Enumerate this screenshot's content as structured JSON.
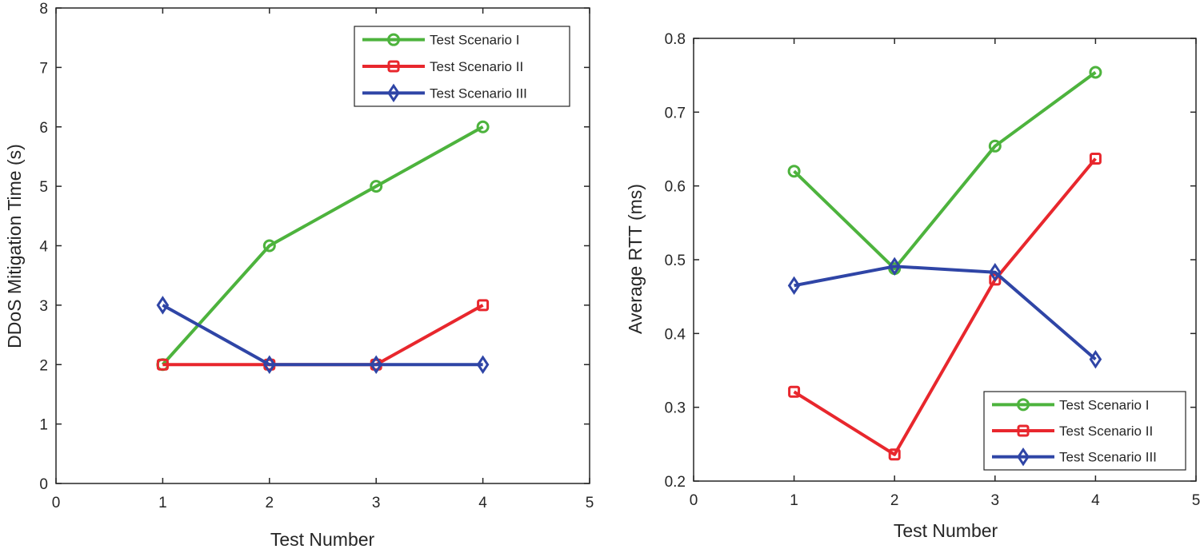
{
  "chart_data": [
    {
      "type": "line",
      "title": "",
      "xlabel": "Test Number",
      "ylabel": "DDoS Mitigation Time (s)",
      "xlim": [
        0,
        5
      ],
      "ylim": [
        0,
        8
      ],
      "xticks": [
        0,
        1,
        2,
        3,
        4,
        5
      ],
      "yticks": [
        0,
        1,
        2,
        3,
        4,
        5,
        6,
        7,
        8
      ],
      "grid": false,
      "legend_location": "top-right",
      "x": [
        1,
        2,
        3,
        4
      ],
      "series": [
        {
          "name": "Test Scenario I",
          "values": [
            2,
            4,
            5,
            6
          ],
          "color": "#4db33d",
          "marker": "circle"
        },
        {
          "name": "Test Scenario II",
          "values": [
            2,
            2,
            2,
            3
          ],
          "color": "#e8272d",
          "marker": "square"
        },
        {
          "name": "Test Scenario III",
          "values": [
            3,
            2,
            2,
            2
          ],
          "color": "#2f45a6",
          "marker": "diamond"
        }
      ]
    },
    {
      "type": "line",
      "title": "",
      "xlabel": "Test Number",
      "ylabel": "Average RTT (ms)",
      "xlim": [
        0,
        5
      ],
      "ylim": [
        0.2,
        0.8
      ],
      "xticks": [
        0,
        1,
        2,
        3,
        4,
        5
      ],
      "yticks": [
        0.2,
        0.3,
        0.4,
        0.5,
        0.6,
        0.7,
        0.8
      ],
      "grid": false,
      "legend_location": "bottom-right",
      "x": [
        1,
        2,
        3,
        4
      ],
      "series": [
        {
          "name": "Test Scenario I",
          "values": [
            0.62,
            0.488,
            0.654,
            0.754
          ],
          "color": "#4db33d",
          "marker": "circle"
        },
        {
          "name": "Test Scenario II",
          "values": [
            0.321,
            0.236,
            0.473,
            0.637
          ],
          "color": "#e8272d",
          "marker": "square"
        },
        {
          "name": "Test Scenario III",
          "values": [
            0.465,
            0.491,
            0.483,
            0.365
          ],
          "color": "#2f45a6",
          "marker": "diamond"
        }
      ]
    }
  ]
}
